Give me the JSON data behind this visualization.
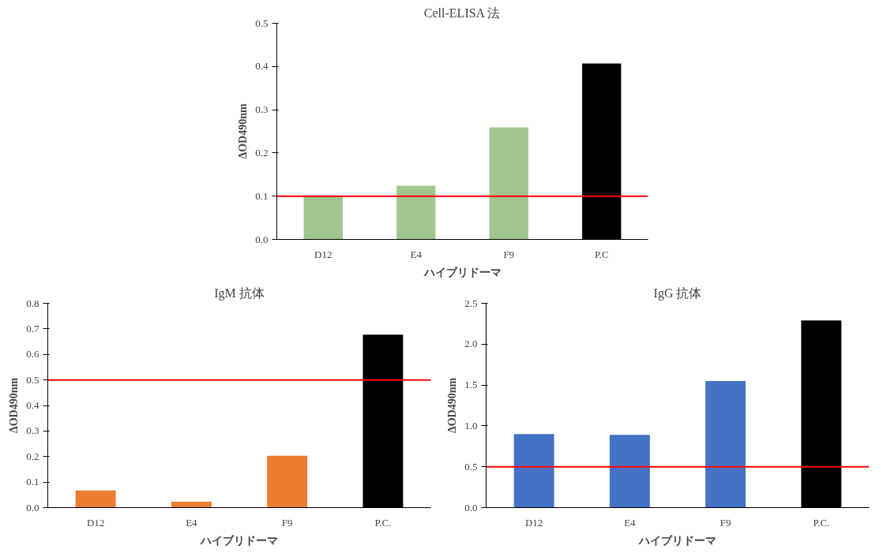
{
  "chart_data": [
    {
      "type": "bar",
      "title": "Cell-ELISA 法",
      "xlabel": "ハイブリドーマ",
      "ylabel": "ΔOD490nm",
      "categories": [
        "D12",
        "E4",
        "F9",
        "P.C"
      ],
      "values": [
        0.1,
        0.124,
        0.259,
        0.407
      ],
      "colors": [
        "#a2c590",
        "#a2c590",
        "#a2c590",
        "#000000"
      ],
      "ylim": [
        0,
        0.5
      ],
      "yticks": [
        {
          "value": 0,
          "label": "0.0"
        },
        {
          "value": 0.1,
          "label": "0.1"
        },
        {
          "value": 0.2,
          "label": "0.2"
        },
        {
          "value": 0.3,
          "label": "0.3"
        },
        {
          "value": 0.4,
          "label": "0.4"
        },
        {
          "value": 0.5,
          "label": "0.5"
        }
      ],
      "ref_lines": [
        {
          "axis": "y",
          "value": 0.1,
          "color": "#ff0000"
        }
      ],
      "grid": false
    },
    {
      "type": "bar",
      "title": "IgM 抗体",
      "xlabel": "ハイブリドーマ",
      "ylabel": "ΔOD490nm",
      "categories": [
        "D12",
        "E4",
        "F9",
        "P.C."
      ],
      "values": [
        0.067,
        0.023,
        0.203,
        0.677
      ],
      "colors": [
        "#ed7d31",
        "#ed7d31",
        "#ed7d31",
        "#000000"
      ],
      "ylim": [
        0,
        0.8
      ],
      "yticks": [
        {
          "value": 0,
          "label": "0.0"
        },
        {
          "value": 0.1,
          "label": "0.1"
        },
        {
          "value": 0.2,
          "label": "0.2"
        },
        {
          "value": 0.3,
          "label": "0.3"
        },
        {
          "value": 0.4,
          "label": "0.4"
        },
        {
          "value": 0.5,
          "label": "0.5"
        },
        {
          "value": 0.6,
          "label": "0.6"
        },
        {
          "value": 0.7,
          "label": "0.7"
        },
        {
          "value": 0.8,
          "label": "0.8"
        }
      ],
      "ref_lines": [
        {
          "axis": "y",
          "value": 0.5,
          "color": "#ff0000"
        }
      ],
      "grid": false
    },
    {
      "type": "bar",
      "title": "IgG 抗体",
      "xlabel": "ハイブリドーマ",
      "ylabel": "ΔOD490nm",
      "categories": [
        "D12",
        "E4",
        "F9",
        "P.C."
      ],
      "values": [
        0.9,
        0.89,
        1.55,
        2.29
      ],
      "colors": [
        "#4472c4",
        "#4472c4",
        "#4472c4",
        "#000000"
      ],
      "ylim": [
        0,
        2.5
      ],
      "yticks": [
        {
          "value": 0,
          "label": "0.0"
        },
        {
          "value": 0.5,
          "label": "0.5"
        },
        {
          "value": 1,
          "label": "1.0"
        },
        {
          "value": 1.5,
          "label": "1.5"
        },
        {
          "value": 2,
          "label": "2.0"
        },
        {
          "value": 2.5,
          "label": "2.5"
        }
      ],
      "ref_lines": [
        {
          "axis": "y",
          "value": 0.5,
          "color": "#ff0000"
        }
      ],
      "grid": false
    }
  ]
}
